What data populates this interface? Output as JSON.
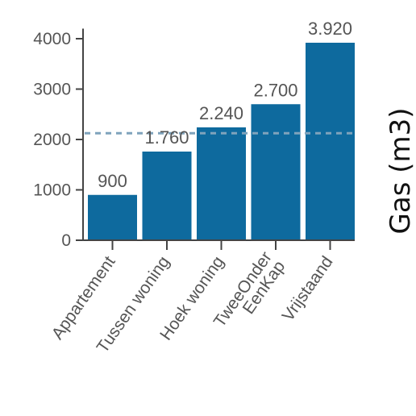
{
  "chart_data": {
    "type": "bar",
    "title": "",
    "xlabel": "",
    "ylabel": "Gas (m3)",
    "categories": [
      "Appartement",
      "Tussen woning",
      "Hoek woning",
      "TweeOnder EenKap",
      "Vrijstaand"
    ],
    "values": [
      900,
      1760,
      2240,
      2700,
      3920
    ],
    "data_labels": [
      "900",
      "1.760",
      "2.240",
      "2.700",
      "3.920"
    ],
    "ylim": [
      0,
      4200
    ],
    "yticks": [
      0,
      1000,
      2000,
      3000,
      4000
    ],
    "reference_line": {
      "value": 2100,
      "style": "dashed"
    },
    "bar_color": "#0e6a9e",
    "reference_color": "#7fa3bc",
    "grid": false,
    "legend": "none"
  }
}
